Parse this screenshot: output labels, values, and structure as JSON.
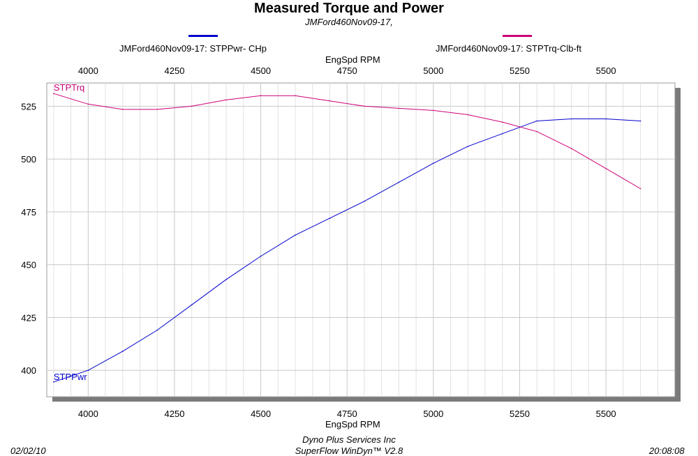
{
  "header": {
    "title": "Measured Torque and Power",
    "subtitle": "JMFord460Nov09-17,"
  },
  "legend": [
    {
      "label": "JMFord460Nov09-17: STPPwr- CHp",
      "color": "#0000cc"
    },
    {
      "label": "JMFord460Nov09-17: STPTrq-Clb-ft",
      "color": "#cc0077"
    }
  ],
  "footer": {
    "date": "02/02/10",
    "company": "Dyno Plus Services Inc",
    "software": "SuperFlow WinDyn™ V2.8",
    "time": "20:08:08"
  },
  "chart_data": {
    "type": "line",
    "title": "Measured Torque and Power",
    "subtitle": "JMFord460Nov09-17,",
    "xlabel": "EngSpd  RPM",
    "x_ticks": [
      4000,
      4250,
      4500,
      4750,
      5000,
      5250,
      5500
    ],
    "xlim": [
      3880,
      5700
    ],
    "y_ticks": [
      400,
      425,
      450,
      475,
      500,
      525
    ],
    "ylim": [
      387.5,
      536
    ],
    "grid": true,
    "x": [
      3900,
      4000,
      4100,
      4200,
      4300,
      4400,
      4500,
      4600,
      4700,
      4800,
      4900,
      5000,
      5100,
      5200,
      5300,
      5400,
      5500,
      5600
    ],
    "series": [
      {
        "name": "STPPwr",
        "label": "STPPwr",
        "color": "#0000cc",
        "values": [
          394.5,
          400,
          409,
          419,
          431,
          443,
          454,
          464,
          472,
          480,
          489,
          498,
          506,
          512,
          518,
          519,
          519,
          518
        ]
      },
      {
        "name": "STPTrq",
        "label": "STPTrq",
        "color": "#cc0077",
        "values": [
          531,
          526,
          523.5,
          523.5,
          525,
          528,
          530,
          530,
          527.5,
          525,
          524,
          523,
          521,
          517.5,
          513,
          505,
          495.5,
          486
        ]
      }
    ]
  }
}
